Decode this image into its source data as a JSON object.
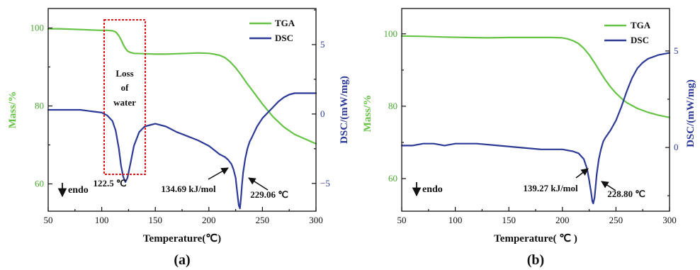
{
  "chart_data": [
    {
      "type": "line",
      "panel_label": "(a)",
      "xlabel": "Temperature(℃)",
      "ylabel_left": "Mass/%",
      "ylabel_right": "DSC/(mW/mg)",
      "xlim": [
        50,
        300
      ],
      "ylim_left": [
        53,
        105
      ],
      "ylim_right": [
        -7,
        7.6
      ],
      "x_ticks": [
        50,
        100,
        150,
        200,
        250,
        300
      ],
      "y_left_ticks": [
        60,
        80,
        100
      ],
      "y_right_ticks": [
        -5,
        0,
        5
      ],
      "legend_position": "top-right",
      "series": [
        {
          "name": "TGA",
          "axis": "left",
          "color": "#66c346",
          "x": [
            50,
            60,
            70,
            80,
            90,
            100,
            105,
            110,
            113,
            116,
            118,
            120,
            122,
            124,
            127,
            130,
            140,
            150,
            160,
            170,
            180,
            190,
            200,
            205,
            210,
            215,
            220,
            225,
            230,
            235,
            240,
            250,
            260,
            270,
            280,
            290,
            300
          ],
          "values": [
            99.8,
            99.8,
            99.7,
            99.6,
            99.5,
            99.4,
            99.4,
            99.3,
            99.0,
            98.0,
            97.0,
            95.8,
            94.8,
            94.1,
            93.7,
            93.5,
            93.4,
            93.3,
            93.3,
            93.4,
            93.5,
            93.6,
            93.5,
            93.3,
            93.0,
            92.4,
            91.3,
            89.8,
            88.0,
            86.0,
            84.2,
            80.5,
            77.2,
            74.6,
            72.7,
            71.5,
            70.3
          ]
        },
        {
          "name": "DSC",
          "axis": "right",
          "color": "#2d3a96",
          "x": [
            50,
            60,
            70,
            80,
            90,
            100,
            105,
            110,
            113,
            116,
            118,
            120,
            122,
            124,
            127,
            130,
            135,
            140,
            145,
            150,
            160,
            170,
            180,
            190,
            200,
            205,
            210,
            215,
            218,
            221,
            223,
            225,
            226,
            227,
            228,
            229.06,
            230,
            231,
            232,
            234,
            236,
            238,
            240,
            245,
            250,
            255,
            260,
            265,
            270,
            275,
            280,
            290,
            300
          ],
          "values": [
            0.3,
            0.3,
            0.3,
            0.3,
            0.2,
            0.1,
            -0.1,
            -0.5,
            -1.2,
            -2.5,
            -3.7,
            -4.5,
            -4.9,
            -4.6,
            -3.5,
            -2.3,
            -1.3,
            -0.9,
            -0.8,
            -0.7,
            -0.9,
            -1.3,
            -1.6,
            -1.9,
            -2.3,
            -2.6,
            -2.9,
            -3.1,
            -3.3,
            -3.6,
            -4.0,
            -4.6,
            -5.3,
            -6.0,
            -6.6,
            -6.8,
            -6.0,
            -5.0,
            -4.2,
            -3.2,
            -2.5,
            -2.0,
            -1.7,
            -0.9,
            -0.3,
            0.1,
            0.5,
            0.9,
            1.2,
            1.4,
            1.5,
            1.5,
            1.5
          ]
        }
      ],
      "annotations": {
        "loss_line1": "Loss",
        "loss_line2": "of",
        "loss_line3": "water",
        "peak1": "122.5 ℃",
        "enthalpy": "134.69 kJ/mol",
        "peak2": "229.06 ℃",
        "endo": "endo"
      }
    },
    {
      "type": "line",
      "panel_label": "(b)",
      "xlabel": "Temperature( ℃ )",
      "ylabel_left": "Mass/%",
      "ylabel_right": "DSC/(mW/mg)",
      "xlim": [
        50,
        300
      ],
      "ylim_left": [
        51,
        107
      ],
      "ylim_right": [
        -3.3,
        7.2
      ],
      "x_ticks": [
        50,
        100,
        150,
        200,
        250,
        300
      ],
      "y_left_ticks": [
        60,
        80,
        100
      ],
      "y_right_ticks": [
        0,
        5
      ],
      "legend_position": "top-right",
      "series": [
        {
          "name": "TGA",
          "axis": "left",
          "color": "#66c346",
          "x": [
            50,
            70,
            90,
            110,
            130,
            150,
            170,
            190,
            200,
            205,
            210,
            215,
            220,
            225,
            230,
            235,
            240,
            245,
            250,
            255,
            260,
            270,
            280,
            290,
            300
          ],
          "values": [
            99.4,
            99.3,
            99.1,
            99.0,
            98.9,
            99.0,
            99.0,
            99.0,
            98.9,
            98.6,
            98.1,
            97.3,
            96.0,
            94.2,
            92.0,
            89.6,
            87.3,
            85.3,
            83.6,
            82.2,
            81.0,
            79.4,
            78.3,
            77.5,
            76.9
          ]
        },
        {
          "name": "DSC",
          "axis": "right",
          "color": "#2d3a96",
          "x": [
            50,
            60,
            70,
            80,
            90,
            100,
            120,
            140,
            160,
            180,
            200,
            210,
            215,
            220,
            223,
            225,
            227,
            228,
            228.8,
            230,
            231,
            232,
            234,
            236,
            238,
            240,
            245,
            250,
            255,
            260,
            265,
            270,
            275,
            280,
            290,
            300
          ],
          "values": [
            0.1,
            0.1,
            0.2,
            0.2,
            0.1,
            0.2,
            0.2,
            0.1,
            0.0,
            -0.1,
            -0.1,
            -0.2,
            -0.3,
            -0.6,
            -1.1,
            -1.7,
            -2.4,
            -2.8,
            -2.9,
            -2.6,
            -2.0,
            -1.4,
            -0.6,
            -0.1,
            0.3,
            0.5,
            0.9,
            1.4,
            2.1,
            2.9,
            3.6,
            4.1,
            4.4,
            4.6,
            4.8,
            4.9
          ]
        }
      ],
      "annotations": {
        "enthalpy": "139.27 kJ/mol",
        "peak": "228.80 ℃",
        "endo": "endo"
      }
    }
  ]
}
